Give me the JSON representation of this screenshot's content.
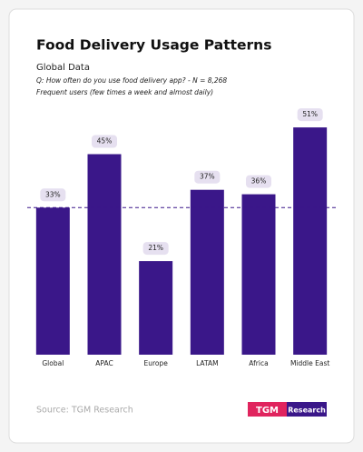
{
  "chart_data": {
    "type": "bar",
    "title": "Food Delivery Usage Patterns",
    "subtitle": "Global Data",
    "question": "Q: How often do you use food delivery app? - N = 8,268",
    "note": "Frequent users (few times a week and almost daily)",
    "categories": [
      "Global",
      "APAC",
      "Europe",
      "LATAM",
      "Africa",
      "Middle East"
    ],
    "values": [
      33,
      45,
      21,
      37,
      36,
      51
    ],
    "value_labels": [
      "33%",
      "45%",
      "21%",
      "37%",
      "36%",
      "51%"
    ],
    "color": "#3a1789",
    "source": "Source: TGM Research",
    "logo": {
      "mark": "TGM",
      "text": "Research"
    }
  }
}
